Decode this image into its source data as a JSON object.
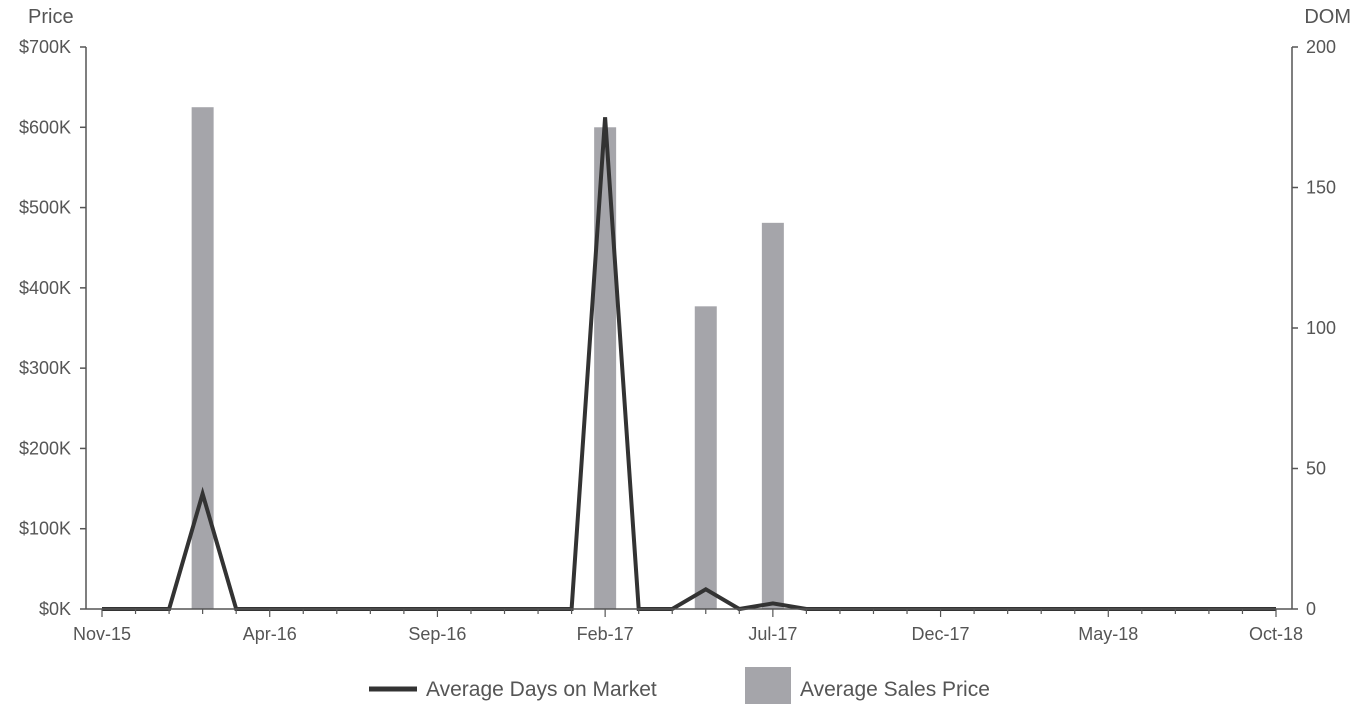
{
  "chart_data": {
    "type": "bar+line",
    "x_ticks": [
      "Nov-15",
      "Apr-16",
      "Sep-16",
      "Feb-17",
      "Jul-17",
      "Dec-17",
      "May-18",
      "Oct-18"
    ],
    "months": [
      "Nov-15",
      "Dec-15",
      "Jan-16",
      "Feb-16",
      "Mar-16",
      "Apr-16",
      "May-16",
      "Jun-16",
      "Jul-16",
      "Aug-16",
      "Sep-16",
      "Oct-16",
      "Nov-16",
      "Dec-16",
      "Jan-17",
      "Feb-17",
      "Mar-17",
      "Apr-17",
      "May-17",
      "Jun-17",
      "Jul-17",
      "Aug-17",
      "Sep-17",
      "Oct-17",
      "Nov-17",
      "Dec-17",
      "Jan-18",
      "Feb-18",
      "Mar-18",
      "Apr-18",
      "May-18",
      "Jun-18",
      "Jul-18",
      "Aug-18",
      "Sep-18",
      "Oct-18"
    ],
    "left_axis": {
      "title": "Price",
      "ylim": [
        0,
        700000
      ],
      "ticks": [
        {
          "value": 0,
          "label": "$0K"
        },
        {
          "value": 100000,
          "label": "$100K"
        },
        {
          "value": 200000,
          "label": "$200K"
        },
        {
          "value": 300000,
          "label": "$300K"
        },
        {
          "value": 400000,
          "label": "$400K"
        },
        {
          "value": 500000,
          "label": "$500K"
        },
        {
          "value": 600000,
          "label": "$600K"
        },
        {
          "value": 700000,
          "label": "$700K"
        }
      ]
    },
    "right_axis": {
      "title": "DOM",
      "ylim": [
        0,
        200
      ],
      "ticks": [
        {
          "value": 0,
          "label": "0"
        },
        {
          "value": 50,
          "label": "50"
        },
        {
          "value": 100,
          "label": "100"
        },
        {
          "value": 150,
          "label": "150"
        },
        {
          "value": 200,
          "label": "200"
        }
      ]
    },
    "series": [
      {
        "name": "Average Sales Price",
        "type": "bar",
        "axis": "left",
        "color": "#a5a5aa",
        "points": [
          {
            "x": "Feb-16",
            "y": 625000
          },
          {
            "x": "Feb-17",
            "y": 600000
          },
          {
            "x": "May-17",
            "y": 377000
          },
          {
            "x": "Jul-17",
            "y": 481000
          }
        ]
      },
      {
        "name": "Average Days on Market",
        "type": "line",
        "axis": "right",
        "color": "#333333",
        "values": [
          0,
          0,
          0,
          41,
          0,
          0,
          0,
          0,
          0,
          0,
          0,
          0,
          0,
          0,
          0,
          175,
          0,
          0,
          7,
          0,
          2,
          0,
          0,
          0,
          0,
          0,
          0,
          0,
          0,
          0,
          0,
          0,
          0,
          0,
          0,
          0
        ]
      }
    ],
    "legend": [
      {
        "label": "Average Days on Market",
        "symbol": "line"
      },
      {
        "label": "Average Sales Price",
        "symbol": "bar"
      }
    ],
    "legend_position": "bottom"
  }
}
